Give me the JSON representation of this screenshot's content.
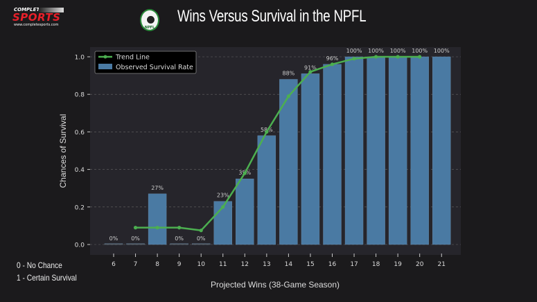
{
  "branding": {
    "brand_top": "COMPLETE",
    "brand_main": "SPORTS",
    "brand_url": "www.completesports.com",
    "league_logo_text": "NPFL"
  },
  "notes": {
    "zero": "0 - No Chance",
    "one": "1 - Certain Survival"
  },
  "colors": {
    "bar": "#4a7aa3",
    "trend": "#4caf50",
    "plot_bg": "#26252b",
    "page_bg": "#1b1a1c"
  },
  "chart_data": {
    "type": "bar",
    "title": "Wins Versus Survival in the NPFL",
    "xlabel": "Projected Wins (38-Game Season)",
    "ylabel": "Chances of Survival",
    "ylim": [
      0,
      1.0
    ],
    "yticks": [
      "0.0",
      "0.2",
      "0.4",
      "0.6",
      "0.8",
      "1.0"
    ],
    "grid": true,
    "legend_position": "top-left",
    "categories": [
      "6",
      "7",
      "8",
      "9",
      "10",
      "11",
      "12",
      "13",
      "14",
      "15",
      "16",
      "17",
      "18",
      "19",
      "20",
      "21"
    ],
    "series": [
      {
        "name": "Observed Survival Rate",
        "type": "bar",
        "values": [
          0,
          0,
          0.27,
          0,
          0,
          0.23,
          0.35,
          0.58,
          0.88,
          0.91,
          0.96,
          1.0,
          1.0,
          1.0,
          1.0,
          1.0
        ],
        "labels": [
          "0%",
          "0%",
          "27%",
          "0%",
          "0%",
          "23%",
          "35%",
          "58%",
          "88%",
          "91%",
          "96%",
          "100%",
          "100%",
          "100%",
          "100%",
          "100%"
        ]
      },
      {
        "name": "Trend Line",
        "type": "line",
        "x": [
          "7",
          "8",
          "9",
          "10",
          "11",
          "12",
          "13",
          "14",
          "15",
          "16",
          "17",
          "18",
          "19",
          "20"
        ],
        "values": [
          0.09,
          0.09,
          0.09,
          0.075,
          0.2,
          0.38,
          0.6,
          0.79,
          0.92,
          0.96,
          0.99,
          1.0,
          1.0,
          1.0
        ]
      }
    ]
  }
}
